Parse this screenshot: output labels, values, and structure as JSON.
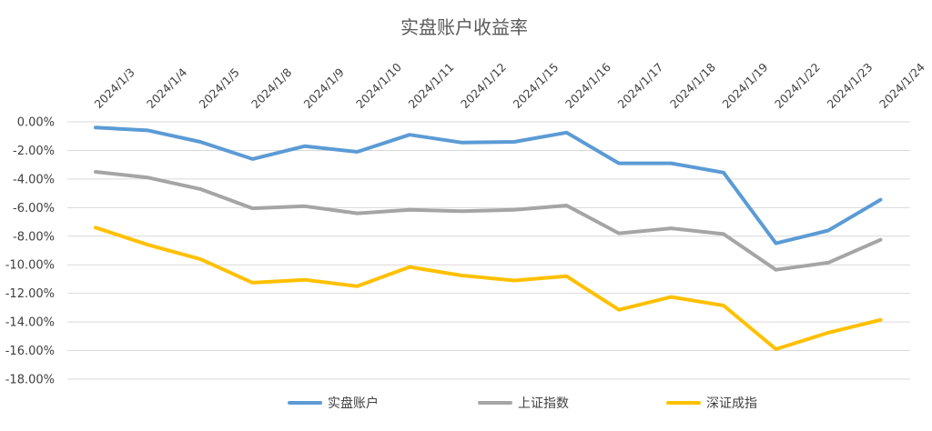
{
  "chart_data": {
    "type": "line",
    "title": "实盘账户收益率",
    "categories": [
      "2024/1/3",
      "2024/1/4",
      "2024/1/5",
      "2024/1/8",
      "2024/1/9",
      "2024/1/10",
      "2024/1/11",
      "2024/1/12",
      "2024/1/15",
      "2024/1/16",
      "2024/1/17",
      "2024/1/18",
      "2024/1/19",
      "2024/1/22",
      "2024/1/23",
      "2024/1/24"
    ],
    "y_ticks": [
      "0.00%",
      "-2.00%",
      "-4.00%",
      "-6.00%",
      "-8.00%",
      "-10.00%",
      "-12.00%",
      "-14.00%",
      "-16.00%",
      "-18.00%"
    ],
    "ylim": [
      -18,
      0
    ],
    "y_unit": "%",
    "grid": true,
    "legend_position": "bottom",
    "series": [
      {
        "name": "实盘账户",
        "color": "#5B9BD5",
        "values": [
          -0.4,
          -0.6,
          -1.4,
          -2.6,
          -1.7,
          -2.1,
          -0.9,
          -1.45,
          -1.4,
          -0.75,
          -2.9,
          -2.9,
          -3.55,
          -8.5,
          -7.6,
          -5.45
        ]
      },
      {
        "name": "上证指数",
        "color": "#A5A5A5",
        "values": [
          -3.5,
          -3.9,
          -4.7,
          -6.05,
          -5.9,
          -6.4,
          -6.15,
          -6.25,
          -6.15,
          -5.85,
          -7.8,
          -7.45,
          -7.85,
          -10.35,
          -9.85,
          -8.25
        ]
      },
      {
        "name": "深证成指",
        "color": "#FFC000",
        "values": [
          -7.4,
          -8.6,
          -9.6,
          -11.25,
          -11.05,
          -11.5,
          -10.15,
          -10.75,
          -11.1,
          -10.8,
          -13.15,
          -12.25,
          -12.85,
          -15.9,
          -14.75,
          -13.85
        ]
      }
    ]
  }
}
